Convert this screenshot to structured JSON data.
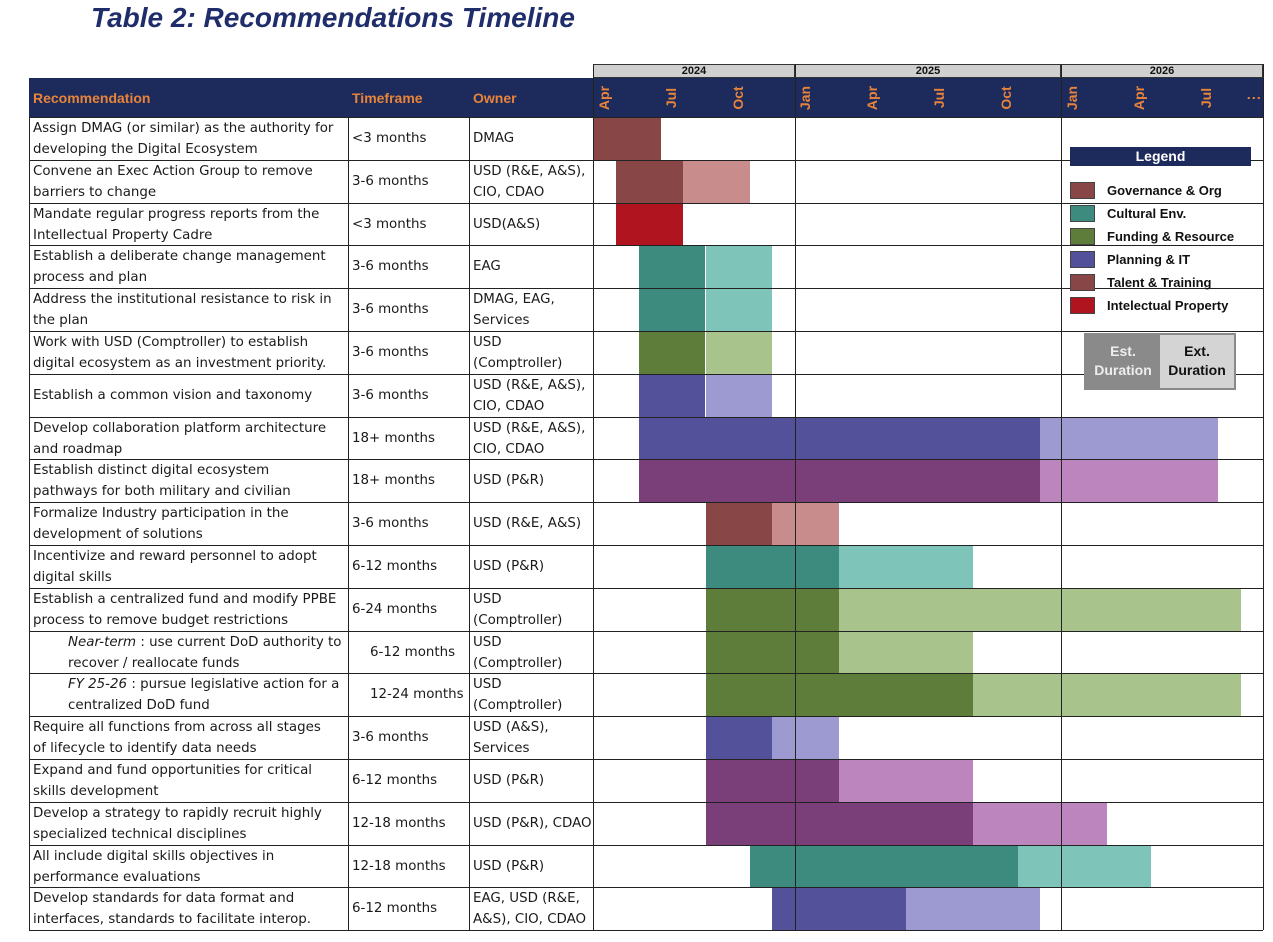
{
  "title": "Table 2:  Recommendations Timeline",
  "columns": {
    "recommendation": "Recommendation",
    "timeframe": "Timeframe",
    "owner": "Owner"
  },
  "years": [
    "2024",
    "2025",
    "2026"
  ],
  "months": [
    "Apr",
    "Jul",
    "Oct",
    "Jan",
    "Apr",
    "Jul",
    "Oct",
    "Jan",
    "Apr",
    "Jul",
    "⋮"
  ],
  "legend": {
    "title": "Legend",
    "items": [
      {
        "label": "Governance & Org",
        "color": "#894646"
      },
      {
        "label": "Cultural Env.",
        "color": "#3d8a7f"
      },
      {
        "label": "Funding & Resource",
        "color": "#5e7d3a"
      },
      {
        "label": "Planning & IT",
        "color": "#54519b"
      },
      {
        "label": "Talent & Training",
        "color": "#894646"
      },
      {
        "label": "Intelectual Property",
        "color": "#b0141e"
      }
    ],
    "est_label_1": "Est.",
    "est_label_2": "Duration",
    "ext_label_1": "Ext.",
    "ext_label_2": "Duration"
  },
  "rows": [
    {
      "rec": [
        "Assign DMAG (or similar) as the authority for",
        "developing the Digital Ecosystem"
      ],
      "timeframe": "<3 months",
      "owner": [
        "DMAG"
      ]
    },
    {
      "rec": [
        "Convene an Exec Action Group to remove",
        "barriers to change"
      ],
      "timeframe": "3-6 months",
      "owner": [
        "USD (R&E, A&S),",
        "CIO, CDAO"
      ]
    },
    {
      "rec": [
        "Mandate regular progress reports from the",
        "Intellectual Property Cadre"
      ],
      "timeframe": "<3 months",
      "owner": [
        "USD(A&S)"
      ]
    },
    {
      "rec": [
        "Establish a deliberate change management",
        "process and plan"
      ],
      "timeframe": "3-6 months",
      "owner": [
        "EAG"
      ]
    },
    {
      "rec": [
        "Address the institutional resistance to risk in",
        "the plan"
      ],
      "timeframe": "3-6 months",
      "owner": [
        "DMAG, EAG,",
        "Services"
      ]
    },
    {
      "rec": [
        "Work with USD (Comptroller) to establish",
        "digital ecosystem as an investment priority."
      ],
      "timeframe": "3-6 months",
      "owner": [
        "USD",
        "(Comptroller)"
      ]
    },
    {
      "rec": [
        "Establish a common vision and taxonomy"
      ],
      "timeframe": "3-6 months",
      "owner": [
        "USD (R&E, A&S),",
        "CIO, CDAO"
      ]
    },
    {
      "rec": [
        "Develop collaboration platform architecture",
        "and roadmap"
      ],
      "timeframe": "18+ months",
      "owner": [
        "USD (R&E, A&S),",
        "CIO, CDAO"
      ]
    },
    {
      "rec": [
        "Establish distinct digital ecosystem",
        "pathways for both military and civilian"
      ],
      "timeframe": "18+ months",
      "owner": [
        "USD (P&R)"
      ]
    },
    {
      "rec": [
        "Formalize Industry participation in the",
        "development of solutions"
      ],
      "timeframe": "3-6 months",
      "owner": [
        "USD (R&E, A&S)"
      ]
    },
    {
      "rec": [
        "Incentivize and reward personnel to adopt",
        "digital skills"
      ],
      "timeframe": "6-12 months",
      "owner": [
        "USD (P&R)"
      ]
    },
    {
      "rec": [
        "Establish a centralized fund and modify PPBE",
        "process to remove budget restrictions"
      ],
      "timeframe": "6-24 months",
      "owner": [
        "USD",
        "(Comptroller)"
      ]
    },
    {
      "rec_em": "Near-term",
      "rec": [
        " : use current DoD authority to",
        "recover / reallocate funds"
      ],
      "timeframe": "6-12 months",
      "owner": [
        "USD",
        "(Comptroller)"
      ],
      "indent": true
    },
    {
      "rec_em": "FY 25-26",
      "rec": [
        " : pursue legislative action for a",
        "centralized DoD fund"
      ],
      "timeframe": "12-24 months",
      "owner": [
        "USD",
        "(Comptroller)"
      ],
      "indent": true
    },
    {
      "rec": [
        "Require all functions from across all stages",
        "of lifecycle to identify data needs"
      ],
      "timeframe": "3-6 months",
      "owner": [
        "USD (A&S),",
        "Services"
      ]
    },
    {
      "rec": [
        "Expand and fund opportunities for critical",
        "skills development"
      ],
      "timeframe": "6-12 months",
      "owner": [
        "USD (P&R)"
      ]
    },
    {
      "rec": [
        "Develop a strategy to rapidly recruit highly",
        "specialized technical disciplines"
      ],
      "timeframe": "12-18 months",
      "owner": [
        "USD (P&R), CDAO"
      ]
    },
    {
      "rec": [
        "All include digital skills objectives in",
        "performance evaluations"
      ],
      "timeframe": "12-18 months",
      "owner": [
        "USD (P&R)"
      ]
    },
    {
      "rec": [
        "Develop standards for data format and",
        "interfaces, standards to facilitate interop."
      ],
      "timeframe": "6-12 months",
      "owner": [
        "EAG, USD (R&E,",
        "A&S), CIO, CDAO"
      ]
    }
  ],
  "bars": [
    [
      [
        "#894646",
        0,
        3
      ]
    ],
    [
      [
        "#894646",
        1,
        4
      ],
      [
        "#c98c8c",
        4,
        7
      ]
    ],
    [
      [
        "#b0141e",
        1,
        4
      ]
    ],
    [
      [
        "#3d8a7f",
        2,
        5
      ],
      [
        "#7fc4b8",
        5,
        8
      ]
    ],
    [
      [
        "#3d8a7f",
        2,
        5
      ],
      [
        "#7fc4b8",
        5,
        8
      ]
    ],
    [
      [
        "#5e7d3a",
        2,
        5
      ],
      [
        "#a8c48c",
        5,
        8
      ]
    ],
    [
      [
        "#54519b",
        2,
        5
      ],
      [
        "#9c9ad0",
        5,
        8
      ]
    ],
    [
      [
        "#54519b",
        2,
        20
      ],
      [
        "#9c9ad0",
        20,
        28
      ]
    ],
    [
      [
        "#7a3f78",
        2,
        20
      ],
      [
        "#bd85bd",
        20,
        28
      ]
    ],
    [
      [
        "#894646",
        5,
        8
      ],
      [
        "#c98c8c",
        8,
        11
      ]
    ],
    [
      [
        "#3d8a7f",
        5,
        11
      ],
      [
        "#7fc4b8",
        11,
        17
      ]
    ],
    [
      [
        "#5e7d3a",
        5,
        11
      ],
      [
        "#a8c48c",
        11,
        29
      ]
    ],
    [
      [
        "#5e7d3a",
        5,
        11
      ],
      [
        "#a8c48c",
        11,
        17
      ]
    ],
    [
      [
        "#5e7d3a",
        5,
        17
      ],
      [
        "#a8c48c",
        17,
        29
      ]
    ],
    [
      [
        "#54519b",
        5,
        8
      ],
      [
        "#9c9ad0",
        8,
        11
      ]
    ],
    [
      [
        "#7a3f78",
        5,
        11
      ],
      [
        "#bd85bd",
        11,
        17
      ]
    ],
    [
      [
        "#7a3f78",
        5,
        17
      ],
      [
        "#bd85bd",
        17,
        23
      ]
    ],
    [
      [
        "#3d8a7f",
        7,
        19
      ],
      [
        "#7fc4b8",
        19,
        25
      ]
    ],
    [
      [
        "#54519b",
        8,
        14
      ],
      [
        "#9c9ad0",
        14,
        20
      ]
    ]
  ]
}
